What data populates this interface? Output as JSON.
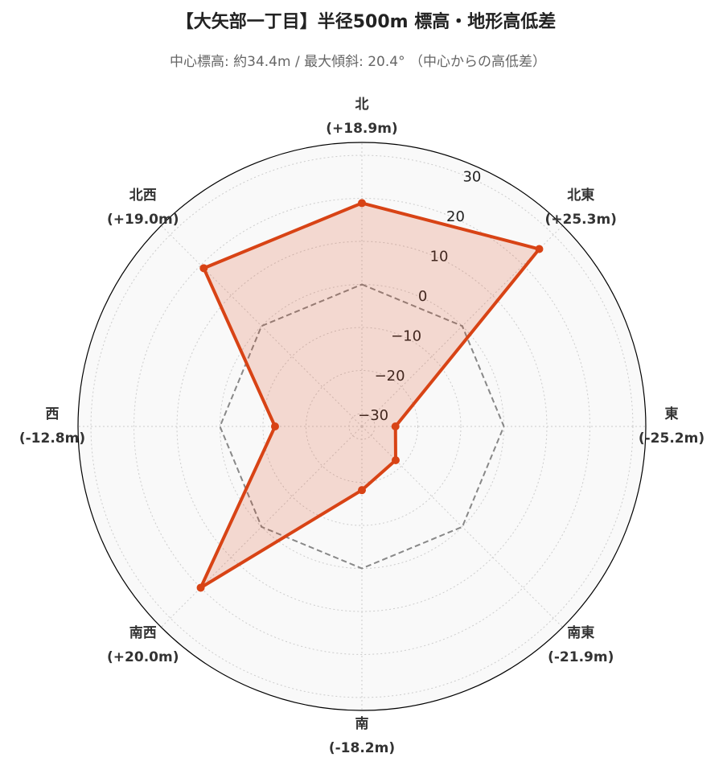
{
  "chart_data": {
    "type": "radar",
    "title": "【大矢部一丁目】半径500m 標高・地形高低差",
    "subtitle": "中心標高: 約34.4m / 最大傾斜: 20.4° （中心からの高低差）",
    "categories": [
      "北",
      "北東",
      "東",
      "南東",
      "南",
      "南西",
      "西",
      "北西"
    ],
    "values": [
      18.9,
      25.3,
      -25.2,
      -21.9,
      -18.2,
      20.0,
      -12.8,
      19.0
    ],
    "value_labels": [
      "(+18.9m)",
      "(+25.3m)",
      "(-25.2m)",
      "(-21.9m)",
      "(-18.2m)",
      "(+20.0m)",
      "(-12.8m)",
      "(+19.0m)"
    ],
    "color": "#d84315",
    "reference_value": 0,
    "reference_color": "#888888",
    "ylim": [
      -33,
      33
    ],
    "yticks": [
      {
        "value": -30,
        "label": "−30"
      },
      {
        "value": -20,
        "label": "−20"
      },
      {
        "value": -10,
        "label": "−10"
      },
      0,
      10,
      20,
      30
    ],
    "grid": true
  }
}
